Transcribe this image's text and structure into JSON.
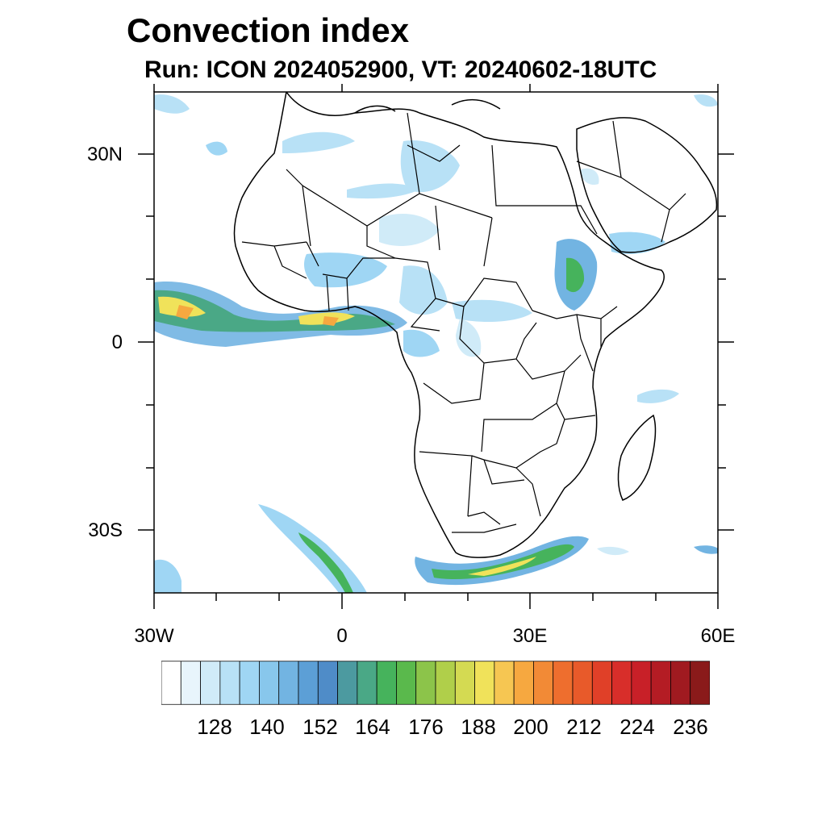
{
  "header": {
    "title": "Convection index",
    "subtitle": "Run: ICON 2024052900,  VT: 20240602-18UTC"
  },
  "axes": {
    "lat_labels": [
      "30N",
      "0",
      "30S"
    ],
    "lon_labels": [
      "30W",
      "0",
      "30E",
      "60E"
    ]
  },
  "colorbar": {
    "tick_labels": [
      "128",
      "140",
      "152",
      "164",
      "176",
      "188",
      "200",
      "212",
      "224",
      "236"
    ],
    "colors": [
      "#ffffff",
      "#e8f5fc",
      "#d0ebf8",
      "#b8e1f6",
      "#9fd6f4",
      "#88c7ec",
      "#72b4e2",
      "#5c9fd6",
      "#4f8cc8",
      "#4c9aa0",
      "#4aa886",
      "#46b35c",
      "#5ab94c",
      "#8cc44a",
      "#b0cf4a",
      "#d4da52",
      "#f0e25a",
      "#f6c652",
      "#f6a840",
      "#f28a36",
      "#ee6e2e",
      "#e85a2a",
      "#e04028",
      "#d82e2a",
      "#c82028",
      "#b41c24",
      "#a01a20",
      "#8a1a1a"
    ]
  },
  "colors": {
    "light": "#b8e1f6",
    "mid": "#72b4e2",
    "teal": "#4c9aa0",
    "green": "#46b35c",
    "yellow": "#f0e25a",
    "orange": "#f6a840"
  }
}
